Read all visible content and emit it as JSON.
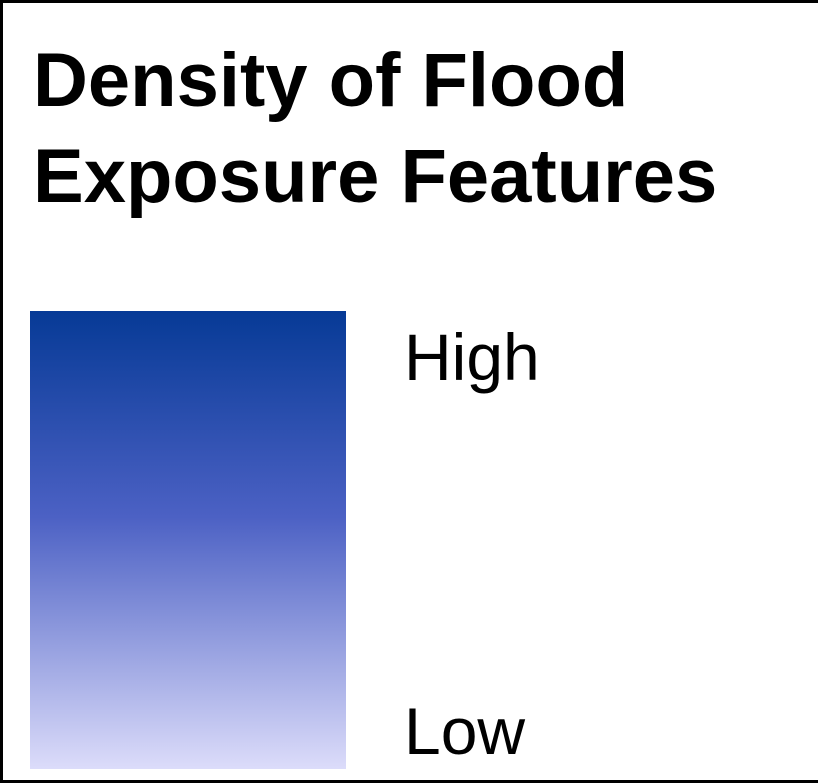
{
  "legend": {
    "title_line1": "Density of Flood",
    "title_line2": "Exposure Features",
    "ramp": {
      "high_label": "High",
      "low_label": "Low",
      "high_color": "#063a96",
      "mid_color": "#4c61c4",
      "low_color": "#dcdcfa"
    }
  }
}
